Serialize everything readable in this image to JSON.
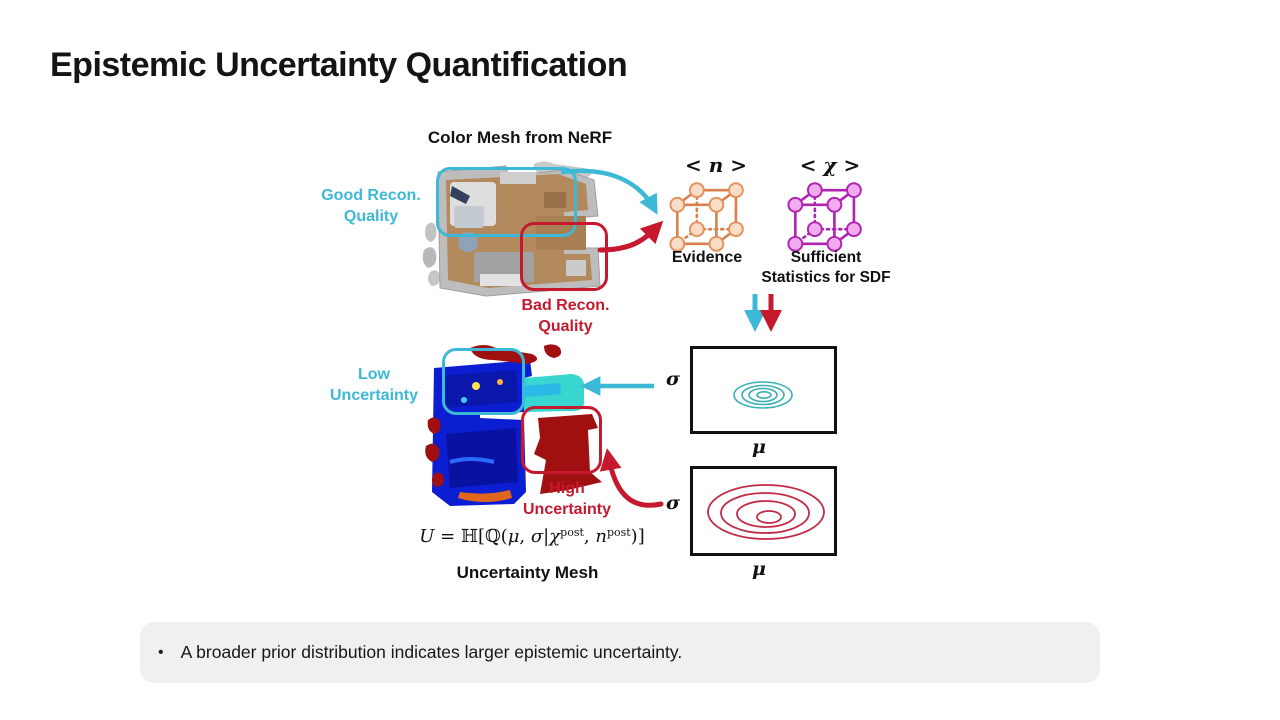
{
  "slide": {
    "title": "Epistemic Uncertainty Quantification"
  },
  "diagram": {
    "color_mesh_title": "Color Mesh from NeRF",
    "labels": {
      "good_recon": "Good Recon.\nQuality",
      "bad_recon": "Bad Recon.\nQuality",
      "low_uncertainty": "Low\nUncertainty",
      "high_uncertainty": "High\nUncertainty"
    },
    "evidence": {
      "symbol": "< n >",
      "caption": "Evidence"
    },
    "sufficient_stats": {
      "symbol": "< χ >",
      "caption": "Sufficient\nStatistics for SDF"
    },
    "plots": [
      {
        "id": "narrow-prior-plot",
        "y_label": "σ",
        "x_label": "μ",
        "spread": "narrow",
        "contour_color": "teal"
      },
      {
        "id": "broad-prior-plot",
        "y_label": "σ",
        "x_label": "μ",
        "spread": "broad",
        "contour_color": "red"
      }
    ],
    "formula": {
      "parts": [
        {
          "t": "U",
          "s": "var"
        },
        {
          "t": " = ",
          "s": "plain"
        },
        {
          "t": "ℍ[ℚ(",
          "s": "plain"
        },
        {
          "t": "μ",
          "s": "var"
        },
        {
          "t": ", ",
          "s": "plain"
        },
        {
          "t": "σ",
          "s": "var"
        },
        {
          "t": "|",
          "s": "plain"
        },
        {
          "t": "χ",
          "s": "var"
        },
        {
          "t": "post",
          "s": "sup"
        },
        {
          "t": ", ",
          "s": "plain"
        },
        {
          "t": "n",
          "s": "var"
        },
        {
          "t": "post",
          "s": "sup"
        },
        {
          "t": ")]",
          "s": "plain"
        }
      ]
    },
    "uncertainty_mesh_title": "Uncertainty Mesh"
  },
  "note": {
    "bullet": "•",
    "text": "A broader prior distribution indicates larger epistemic uncertainty."
  },
  "colors": {
    "cyan": "#3db9d8",
    "red": "#c6192e",
    "teal_contour": "#3aafb5",
    "red_contour": "#c22b45",
    "orange_cube": "#d8814e",
    "orange_cube_fill": "#f9ddc7",
    "magenta_cube": "#b123b1",
    "magenta_cube_fill": "#f3abef",
    "note_bg": "#f0f0f1"
  }
}
